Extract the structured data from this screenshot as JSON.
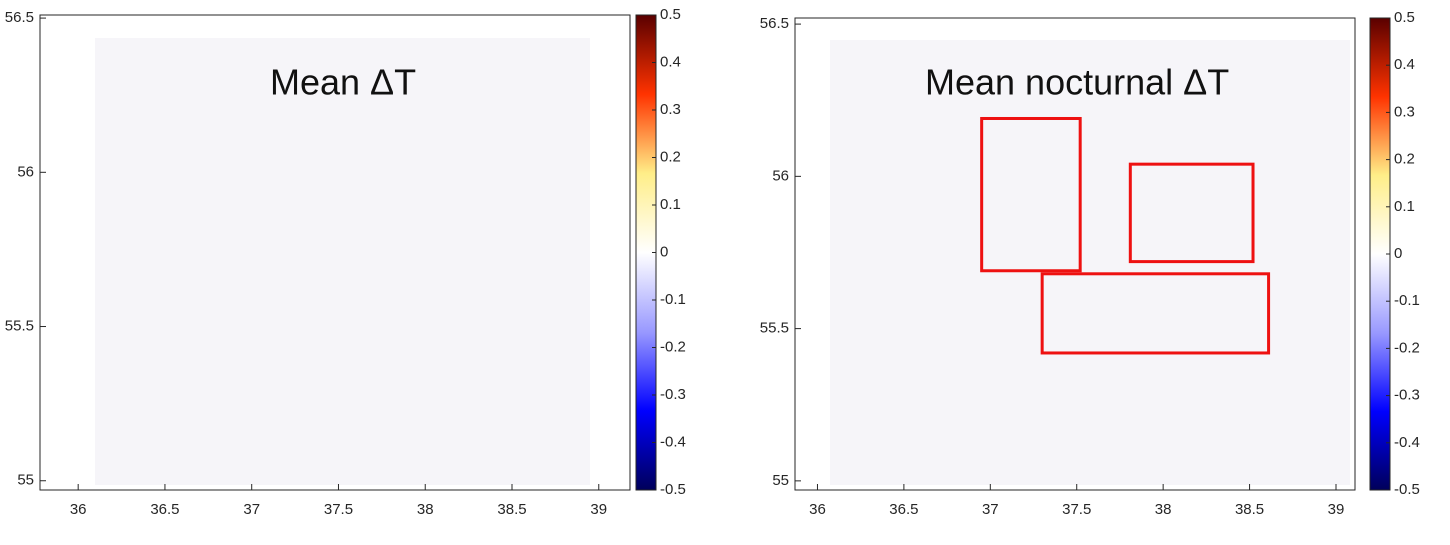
{
  "chart_data": [
    {
      "type": "heatmap",
      "annotation": "Mean ΔT",
      "xlim": [
        35.78,
        39.18
      ],
      "xticks": [
        36,
        36.5,
        37,
        37.5,
        38,
        38.5,
        39
      ],
      "ylim": [
        54.97,
        56.51
      ],
      "yticks": [
        55,
        55.5,
        56,
        56.5
      ],
      "clim": [
        -0.5,
        0.5
      ],
      "cticks": [
        0.5,
        0.4,
        0.3,
        0.2,
        0.1,
        0,
        -0.1,
        -0.2,
        -0.3,
        -0.4,
        -0.5
      ],
      "colormap": [
        "#00005a",
        "#0000ff",
        "#9999ff",
        "#ffffff",
        "#ffee88",
        "#ff3300",
        "#5a0000"
      ],
      "boxes": []
    },
    {
      "type": "heatmap",
      "annotation": "Mean nocturnal ΔT",
      "xlim": [
        35.87,
        39.11
      ],
      "xticks": [
        36,
        36.5,
        37,
        37.5,
        38,
        38.5,
        39
      ],
      "ylim": [
        54.97,
        56.52
      ],
      "yticks": [
        55,
        55.5,
        56,
        56.5
      ],
      "clim": [
        -0.5,
        0.5
      ],
      "cticks": [
        0.5,
        0.4,
        0.3,
        0.2,
        0.1,
        0,
        -0.1,
        -0.2,
        -0.3,
        -0.4,
        -0.5
      ],
      "colormap": [
        "#00005a",
        "#0000ff",
        "#9999ff",
        "#ffffff",
        "#ffee88",
        "#ff3300",
        "#5a0000"
      ],
      "box_color": "#ee1111",
      "boxes": [
        {
          "xlim": [
            36.95,
            37.52
          ],
          "ylim": [
            55.69,
            56.19
          ]
        },
        {
          "xlim": [
            37.81,
            38.52
          ],
          "ylim": [
            55.72,
            56.04
          ]
        },
        {
          "xlim": [
            37.3,
            38.61
          ],
          "ylim": [
            55.42,
            55.68
          ]
        }
      ]
    }
  ]
}
